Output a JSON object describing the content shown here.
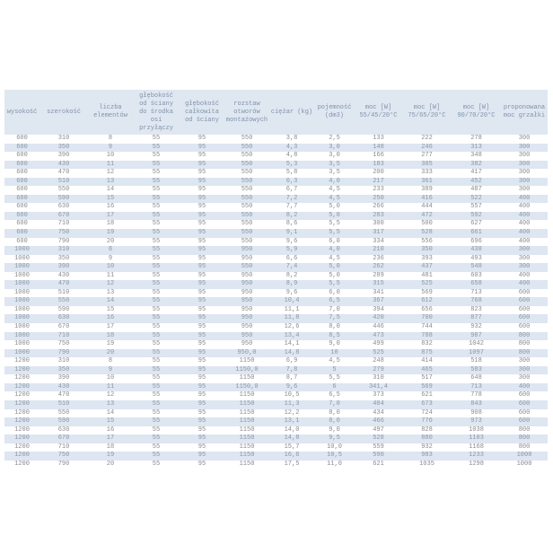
{
  "table": {
    "headers": [
      "wysokość",
      "szerokość",
      "liczba elementów",
      "głębokość od ściany do środka osi przyłączy",
      "głębokość całkowita od ściany",
      "rozstaw otworów montażowych",
      "ciężar (kg)",
      "pojemność (dm3)",
      "moc [W] 55/45/20°C",
      "moc [W] 75/65/20°C",
      "moc [W] 90/70/20°C",
      "proponowana moc grzałki"
    ],
    "rows": [
      [
        "600",
        "310",
        "8",
        "55",
        "95",
        "550",
        "3,8",
        "2,5",
        "133",
        "222",
        "278",
        "300"
      ],
      [
        "600",
        "350",
        "9",
        "55",
        "95",
        "550",
        "4,3",
        "3,0",
        "148",
        "246",
        "313",
        "300"
      ],
      [
        "600",
        "390",
        "10",
        "55",
        "95",
        "550",
        "4,8",
        "3,0",
        "166",
        "277",
        "348",
        "300"
      ],
      [
        "600",
        "430",
        "11",
        "55",
        "95",
        "550",
        "5,3",
        "3,5",
        "183",
        "305",
        "382",
        "300"
      ],
      [
        "600",
        "470",
        "12",
        "55",
        "95",
        "550",
        "5,8",
        "3,5",
        "200",
        "333",
        "417",
        "300"
      ],
      [
        "600",
        "510",
        "13",
        "55",
        "95",
        "550",
        "6,3",
        "4,0",
        "217",
        "361",
        "452",
        "300"
      ],
      [
        "600",
        "550",
        "14",
        "55",
        "95",
        "550",
        "6,7",
        "4,5",
        "233",
        "389",
        "487",
        "300"
      ],
      [
        "600",
        "590",
        "15",
        "55",
        "95",
        "550",
        "7,2",
        "4,5",
        "250",
        "416",
        "522",
        "400"
      ],
      [
        "600",
        "630",
        "16",
        "55",
        "95",
        "550",
        "7,7",
        "5,0",
        "266",
        "444",
        "557",
        "400"
      ],
      [
        "600",
        "670",
        "17",
        "55",
        "95",
        "550",
        "8,2",
        "5,0",
        "283",
        "472",
        "592",
        "400"
      ],
      [
        "600",
        "710",
        "18",
        "55",
        "95",
        "550",
        "8,6",
        "5,5",
        "300",
        "500",
        "627",
        "400"
      ],
      [
        "600",
        "750",
        "19",
        "55",
        "95",
        "550",
        "9,1",
        "5,5",
        "317",
        "528",
        "661",
        "400"
      ],
      [
        "600",
        "790",
        "20",
        "55",
        "95",
        "550",
        "9,6",
        "6,0",
        "334",
        "556",
        "696",
        "400"
      ],
      [
        "1000",
        "310",
        "8",
        "55",
        "95",
        "950",
        "5,9",
        "4,0",
        "210",
        "350",
        "438",
        "300"
      ],
      [
        "1000",
        "350",
        "9",
        "55",
        "95",
        "950",
        "6,6",
        "4,5",
        "236",
        "393",
        "493",
        "300"
      ],
      [
        "1000",
        "390",
        "10",
        "55",
        "95",
        "550",
        "7,4",
        "5,0",
        "262",
        "437",
        "548",
        "300"
      ],
      [
        "1000",
        "430",
        "11",
        "55",
        "95",
        "950",
        "8,2",
        "5,0",
        "289",
        "481",
        "603",
        "400"
      ],
      [
        "1000",
        "470",
        "12",
        "55",
        "95",
        "950",
        "8,9",
        "5,5",
        "315",
        "525",
        "658",
        "400"
      ],
      [
        "1000",
        "510",
        "13",
        "55",
        "95",
        "950",
        "9,6",
        "6,0",
        "341",
        "569",
        "713",
        "600"
      ],
      [
        "1000",
        "550",
        "14",
        "55",
        "95",
        "950",
        "10,4",
        "6,5",
        "367",
        "612",
        "768",
        "600"
      ],
      [
        "1000",
        "590",
        "15",
        "55",
        "95",
        "950",
        "11,1",
        "7,0",
        "394",
        "656",
        "823",
        "600"
      ],
      [
        "1000",
        "630",
        "16",
        "55",
        "95",
        "950",
        "11,8",
        "7,5",
        "420",
        "700",
        "877",
        "600"
      ],
      [
        "1000",
        "670",
        "17",
        "55",
        "95",
        "950",
        "12,6",
        "8,0",
        "446",
        "744",
        "932",
        "600"
      ],
      [
        "1000",
        "710",
        "18",
        "55",
        "95",
        "950",
        "13,4",
        "8,5",
        "473",
        "788",
        "987",
        "800"
      ],
      [
        "1000",
        "750",
        "19",
        "55",
        "95",
        "950",
        "14,1",
        "9,0",
        "499",
        "832",
        "1042",
        "800"
      ],
      [
        "1000",
        "790",
        "20",
        "55",
        "95",
        "950,0",
        "14,8",
        "10",
        "525",
        "875",
        "1097",
        "800"
      ],
      [
        "1200",
        "310",
        "8",
        "55",
        "95",
        "1150",
        "6,9",
        "4,5",
        "248",
        "414",
        "518",
        "300"
      ],
      [
        "1200",
        "350",
        "9",
        "55",
        "95",
        "1150,0",
        "7,8",
        "5",
        "279",
        "465",
        "583",
        "300"
      ],
      [
        "1200",
        "390",
        "10",
        "55",
        "95",
        "1150",
        "8,7",
        "5,5",
        "310",
        "517",
        "648",
        "300"
      ],
      [
        "1200",
        "430",
        "11",
        "55",
        "95",
        "1150,0",
        "9,6",
        "6",
        "341,4",
        "569",
        "713",
        "400"
      ],
      [
        "1200",
        "470",
        "12",
        "55",
        "95",
        "1150",
        "10,5",
        "6,5",
        "373",
        "621",
        "778",
        "600"
      ],
      [
        "1200",
        "510",
        "13",
        "55",
        "95",
        "1150",
        "11,3",
        "7,0",
        "404",
        "673",
        "843",
        "600"
      ],
      [
        "1200",
        "550",
        "14",
        "55",
        "95",
        "1150",
        "12,2",
        "8,0",
        "434",
        "724",
        "908",
        "600"
      ],
      [
        "1200",
        "590",
        "15",
        "55",
        "95",
        "1150",
        "13,1",
        "8,0",
        "466",
        "776",
        "973",
        "600"
      ],
      [
        "1200",
        "630",
        "16",
        "55",
        "95",
        "1150",
        "14,0",
        "9,0",
        "497",
        "828",
        "1038",
        "800"
      ],
      [
        "1200",
        "670",
        "17",
        "55",
        "95",
        "1150",
        "14,8",
        "9,5",
        "528",
        "880",
        "1103",
        "800"
      ],
      [
        "1200",
        "710",
        "18",
        "55",
        "95",
        "1150",
        "15,7",
        "10,0",
        "559",
        "932",
        "1168",
        "800"
      ],
      [
        "1200",
        "750",
        "19",
        "55",
        "95",
        "1150",
        "16,6",
        "10,5",
        "590",
        "983",
        "1233",
        "1000"
      ],
      [
        "1200",
        "790",
        "20",
        "55",
        "95",
        "1150",
        "17,5",
        "11,0",
        "621",
        "1035",
        "1298",
        "1000"
      ]
    ]
  }
}
